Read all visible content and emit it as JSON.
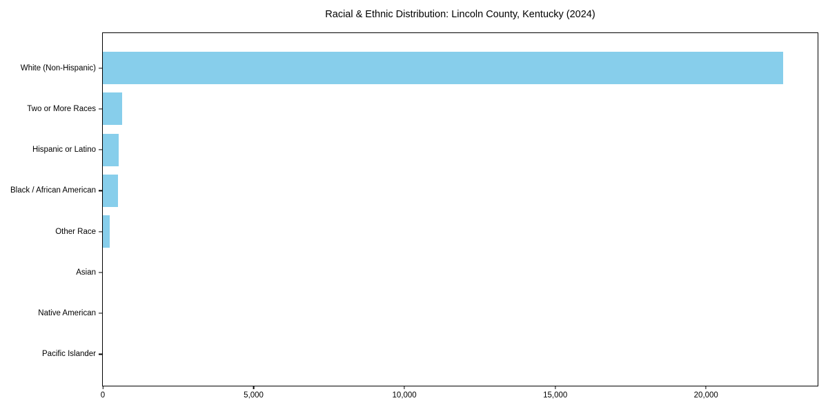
{
  "title": "Racial & Ethnic Distribution: Lincoln County, Kentucky (2024)",
  "colors": {
    "bar": "#87CEEB",
    "axis": "#000000",
    "background": "#ffffff"
  },
  "chart_data": {
    "type": "bar",
    "orientation": "horizontal",
    "title": "Racial & Ethnic Distribution: Lincoln County, Kentucky (2024)",
    "xlabel": "",
    "ylabel": "",
    "categories": [
      "White (Non-Hispanic)",
      "Two or More Races",
      "Hispanic or Latino",
      "Black / African American",
      "Other Race",
      "Asian",
      "Native American",
      "Pacific Islander"
    ],
    "values": [
      22550,
      650,
      520,
      495,
      235,
      0,
      0,
      0
    ],
    "xlim": [
      0,
      23700
    ],
    "xticks": [
      0,
      5000,
      10000,
      15000,
      20000
    ],
    "xtick_labels": [
      "0",
      "5,000",
      "10,000",
      "15,000",
      "20,000"
    ],
    "bar_color": "#87CEEB",
    "grid": false,
    "legend": null
  }
}
